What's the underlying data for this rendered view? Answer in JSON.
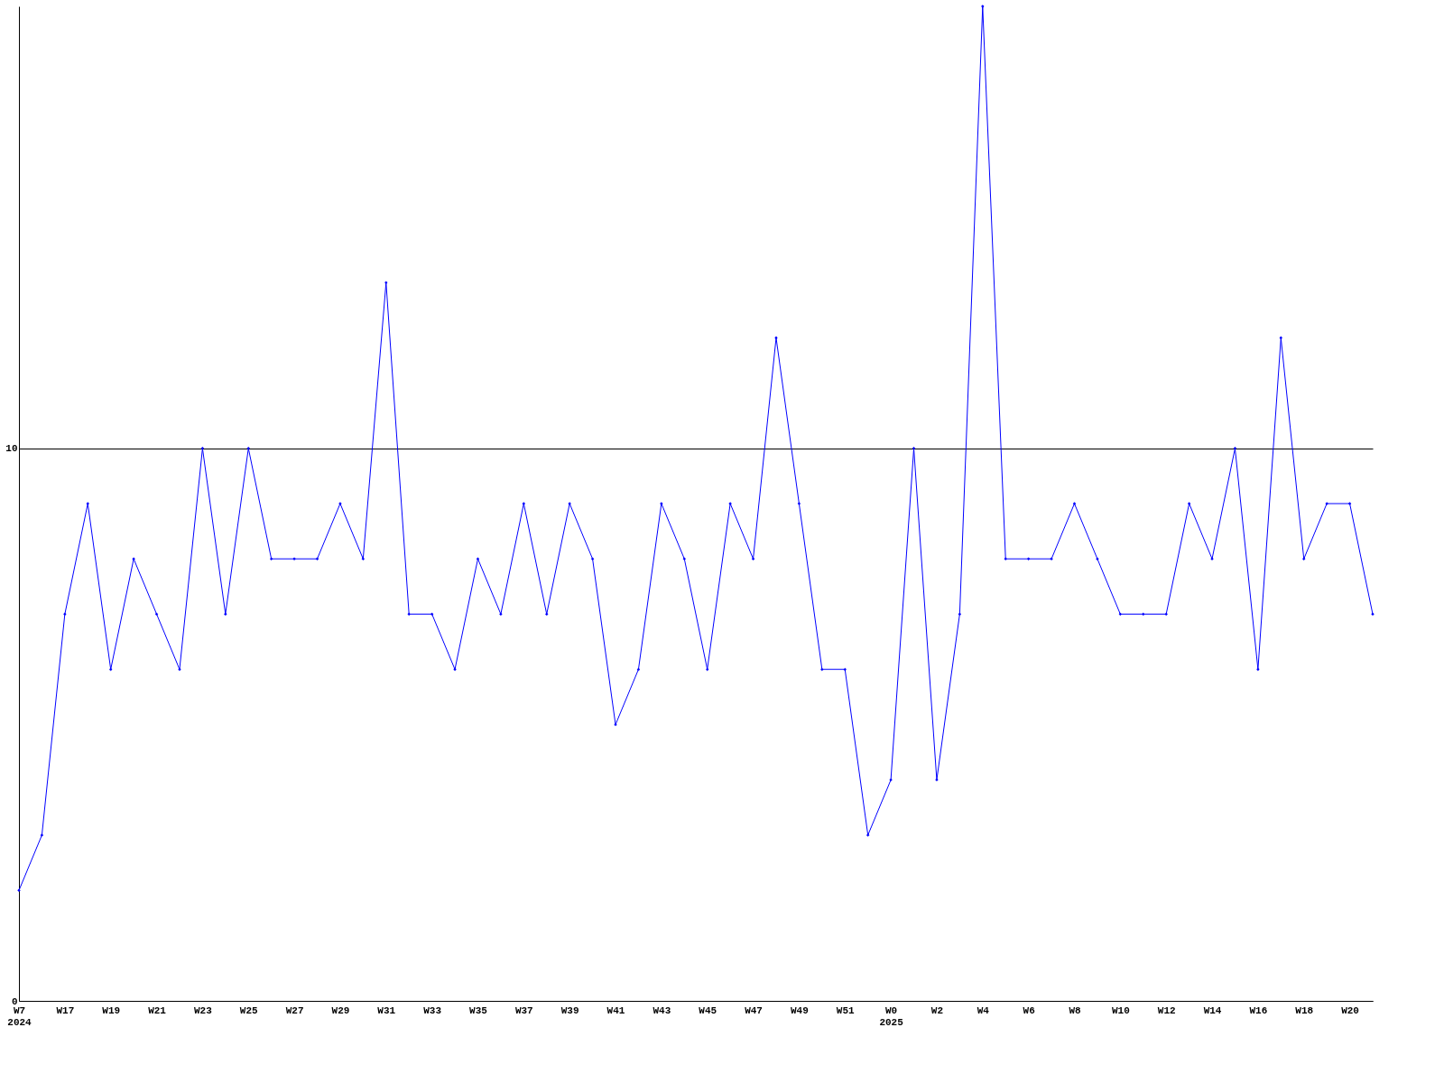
{
  "chart_data": {
    "type": "line",
    "categories": [
      "W7\n2024",
      null,
      "W17",
      null,
      "W19",
      null,
      "W21",
      null,
      "W23",
      null,
      "W25",
      null,
      "W27",
      null,
      "W29",
      null,
      "W31",
      null,
      "W33",
      null,
      "W35",
      null,
      "W37",
      null,
      "W39",
      null,
      "W41",
      null,
      "W43",
      null,
      "W45",
      null,
      "W47",
      null,
      "W49",
      null,
      "W51",
      null,
      "W0\n2025",
      null,
      "W2",
      null,
      "W4",
      null,
      "W6",
      null,
      "W8",
      null,
      "W10",
      null,
      "W12",
      null,
      "W14",
      null,
      "W16",
      null,
      "W18",
      null,
      "W20",
      null
    ],
    "series": [
      {
        "color": "#0000ff",
        "values": [
          2,
          3,
          7,
          9,
          6,
          8,
          7,
          6,
          10,
          7,
          10,
          8,
          8,
          8,
          9,
          8,
          13,
          7,
          7,
          6,
          8,
          7,
          9,
          7,
          9,
          8,
          5,
          6,
          9,
          8,
          6,
          9,
          8,
          12,
          9,
          6,
          6,
          3,
          4,
          10,
          4,
          7,
          18,
          8,
          8,
          8,
          9,
          8,
          7,
          7,
          7,
          9,
          8,
          10,
          6,
          12,
          8,
          9,
          9,
          7
        ]
      }
    ],
    "ylim": [
      0,
      18
    ],
    "yticks": [
      0,
      10
    ],
    "grid": "y",
    "marker": "diamond",
    "line_style": "solid"
  }
}
